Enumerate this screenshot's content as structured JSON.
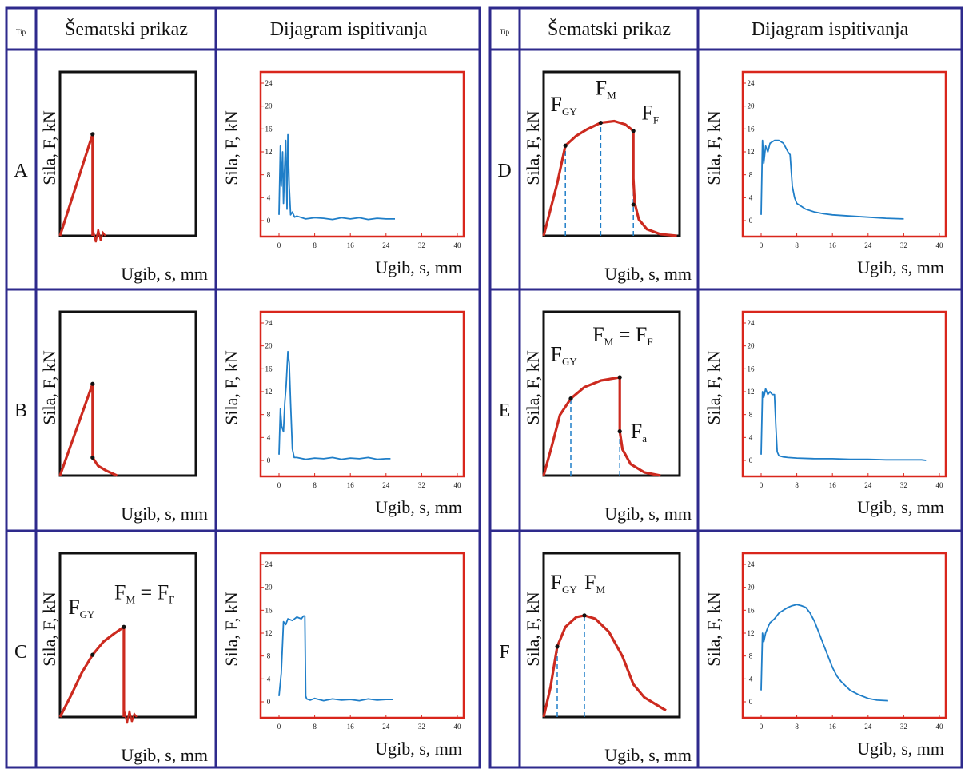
{
  "headers": {
    "tip": "Tip",
    "schematic": "Šematski prikaz",
    "diagram": "Dijagram ispitivanja"
  },
  "axes": {
    "y_label": "Sila, F, kN",
    "x_label": "Ugib, s, mm",
    "x_ticks": [
      "0",
      "8",
      "16",
      "24",
      "32",
      "40"
    ],
    "y_ticks": [
      "0",
      "4",
      "8",
      "12",
      "16",
      "20",
      "24"
    ]
  },
  "colors": {
    "frame": "#2e2a8c",
    "schematic_curve": "#cc2a1f",
    "diagram_border": "#d9261c",
    "diagram_curve": "#1f7ec8",
    "dashed": "#1f7ec8",
    "box": "#111111"
  },
  "rows": [
    {
      "type": "A",
      "labels": []
    },
    {
      "type": "B",
      "labels": []
    },
    {
      "type": "C",
      "labels": [
        "FGY",
        "FM = FF"
      ]
    },
    {
      "type": "D",
      "labels": [
        "FGY",
        "FM",
        "FF"
      ]
    },
    {
      "type": "E",
      "labels": [
        "FGY",
        "FM = FF",
        "Fa"
      ]
    },
    {
      "type": "F",
      "labels": [
        "FGY",
        "FM"
      ]
    }
  ],
  "chart_data": [
    {
      "type": "line",
      "panel": "A",
      "xlabel": "Ugib, s, mm",
      "ylabel": "Sila, F, kN",
      "xlim": [
        0,
        40
      ],
      "ylim": [
        0,
        24
      ],
      "series": [
        {
          "x": [
            0,
            0.3,
            0.5,
            0.8,
            1.0,
            1.2,
            1.5,
            1.8,
            2.0,
            2.3,
            2.6,
            3.0,
            3.5,
            4,
            6,
            8,
            10,
            12,
            14,
            16,
            18,
            20,
            22,
            24,
            26
          ],
          "y": [
            1,
            13,
            6,
            12,
            3,
            8,
            14,
            2,
            15,
            6,
            1,
            1.5,
            0.6,
            0.8,
            0.3,
            0.5,
            0.4,
            0.2,
            0.5,
            0.3,
            0.5,
            0.2,
            0.4,
            0.3,
            0.3
          ]
        }
      ]
    },
    {
      "type": "line",
      "panel": "B",
      "xlabel": "Ugib, s, mm",
      "ylabel": "Sila, F, kN",
      "xlim": [
        0,
        40
      ],
      "ylim": [
        0,
        24
      ],
      "series": [
        {
          "x": [
            0,
            0.3,
            0.6,
            1.0,
            1.3,
            1.6,
            2.0,
            2.3,
            2.6,
            3.0,
            3.4,
            4,
            6,
            8,
            10,
            12,
            14,
            16,
            18,
            20,
            22,
            24,
            25
          ],
          "y": [
            1,
            9,
            6,
            5,
            10,
            13,
            19,
            17,
            10,
            2,
            0.5,
            0.5,
            0.2,
            0.4,
            0.3,
            0.5,
            0.2,
            0.4,
            0.3,
            0.5,
            0.2,
            0.3,
            0.3
          ]
        }
      ]
    },
    {
      "type": "line",
      "panel": "C",
      "xlabel": "Ugib, s, mm",
      "ylabel": "Sila, F, kN",
      "xlim": [
        0,
        40
      ],
      "ylim": [
        0,
        24
      ],
      "series": [
        {
          "x": [
            0,
            0.5,
            1.0,
            1.5,
            2,
            3,
            4,
            5,
            5.5,
            5.8,
            6.0,
            6.2,
            7,
            8,
            10,
            12,
            14,
            16,
            18,
            20,
            22,
            24,
            25.5
          ],
          "y": [
            1,
            5,
            14,
            13.5,
            14.5,
            14.2,
            14.8,
            14.5,
            15,
            15,
            1,
            0.5,
            0.3,
            0.6,
            0.2,
            0.5,
            0.3,
            0.4,
            0.2,
            0.5,
            0.3,
            0.4,
            0.4
          ]
        }
      ]
    },
    {
      "type": "line",
      "panel": "D",
      "xlabel": "Ugib, s, mm",
      "ylabel": "Sila, F, kN",
      "xlim": [
        0,
        40
      ],
      "ylim": [
        0,
        24
      ],
      "series": [
        {
          "x": [
            0,
            0.3,
            0.6,
            1.0,
            1.5,
            2,
            3,
            4,
            5,
            6,
            6.5,
            7,
            7.5,
            8,
            10,
            12,
            14,
            16,
            20,
            24,
            28,
            32
          ],
          "y": [
            1,
            14,
            10,
            13,
            12,
            13.5,
            14,
            14,
            13.5,
            12,
            11.5,
            6,
            4,
            3,
            2,
            1.5,
            1.2,
            1,
            0.8,
            0.6,
            0.4,
            0.3
          ]
        }
      ]
    },
    {
      "type": "line",
      "panel": "E",
      "xlabel": "Ugib, s, mm",
      "ylabel": "Sila, F, kN",
      "xlim": [
        0,
        40
      ],
      "ylim": [
        0,
        24
      ],
      "series": [
        {
          "x": [
            0,
            0.3,
            0.6,
            1.0,
            1.5,
            2,
            2.5,
            3,
            3.3,
            3.6,
            4,
            5,
            6,
            8,
            12,
            16,
            20,
            24,
            28,
            32,
            36,
            37
          ],
          "y": [
            1,
            12,
            11,
            12.5,
            11.5,
            12,
            11.5,
            11.5,
            6,
            1.5,
            0.8,
            0.6,
            0.5,
            0.4,
            0.3,
            0.3,
            0.2,
            0.2,
            0.1,
            0.1,
            0.1,
            0
          ]
        }
      ]
    },
    {
      "type": "line",
      "panel": "F",
      "xlabel": "Ugib, s, mm",
      "ylabel": "Sila, F, kN",
      "xlim": [
        0,
        40
      ],
      "ylim": [
        0,
        24
      ],
      "series": [
        {
          "x": [
            0,
            0.3,
            0.6,
            1.0,
            1.5,
            2,
            3,
            4,
            5,
            6,
            7,
            8,
            9,
            10,
            11,
            12,
            13,
            14,
            15,
            16,
            17,
            18,
            20,
            22,
            24,
            26,
            28.5
          ],
          "y": [
            2,
            12,
            10.5,
            12,
            13,
            13.8,
            14.5,
            15.5,
            16,
            16.5,
            16.8,
            17,
            16.8,
            16.5,
            15.5,
            14,
            12,
            10,
            8,
            6,
            4.5,
            3.5,
            2,
            1.2,
            0.6,
            0.3,
            0.2
          ]
        }
      ]
    }
  ]
}
